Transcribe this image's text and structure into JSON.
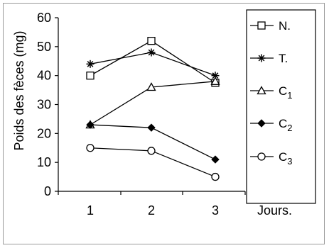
{
  "chart_data": {
    "type": "line",
    "title": "",
    "xlabel": "Jours.",
    "ylabel": "Poids des fèces (mg)",
    "categories": [
      "1",
      "2",
      "3"
    ],
    "ylim": [
      0,
      60
    ],
    "yticks": [
      "0",
      "10",
      "20",
      "30",
      "40",
      "50",
      "60"
    ],
    "grid": false,
    "legend_position": "right",
    "series": [
      {
        "name": "N.",
        "marker": "open-square",
        "values": [
          40,
          52,
          37.5
        ]
      },
      {
        "name": "T.",
        "marker": "asterisk",
        "values": [
          44,
          48,
          40
        ]
      },
      {
        "name": "C",
        "name_sub": "1",
        "marker": "open-triangle",
        "values": [
          23,
          36,
          38
        ]
      },
      {
        "name": "C",
        "name_sub": "2",
        "marker": "filled-diamond",
        "values": [
          23,
          22,
          11
        ]
      },
      {
        "name": "C",
        "name_sub": "3",
        "marker": "open-circle",
        "values": [
          15,
          14,
          5
        ]
      }
    ]
  }
}
